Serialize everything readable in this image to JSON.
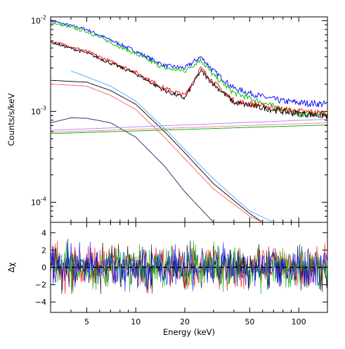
{
  "chart_data": [
    {
      "type": "line",
      "panel": "spectrum",
      "ylabel": "Counts/s/keV",
      "xlabel": "",
      "xscale": "log",
      "yscale": "log",
      "xlim": [
        3,
        150
      ],
      "ylim": [
        6e-05,
        0.011
      ],
      "ytick_labels": [
        {
          "value": 0.01,
          "base": "10",
          "exp": "-2"
        },
        {
          "value": 0.001,
          "base": "10",
          "exp": "-3"
        },
        {
          "value": 0.0001,
          "base": "10",
          "exp": "-4"
        }
      ],
      "grid": false,
      "legend": "none",
      "series": [
        {
          "color": "#0000ff",
          "kind": "data",
          "x": [
            3,
            5,
            10,
            15,
            20,
            25,
            30,
            40,
            60,
            80,
            100,
            150
          ],
          "y": [
            0.01,
            0.008,
            0.0046,
            0.0032,
            0.003,
            0.004,
            0.0028,
            0.0018,
            0.00145,
            0.0013,
            0.00125,
            0.0012
          ]
        },
        {
          "color": "#00bb00",
          "kind": "data",
          "x": [
            3,
            5,
            10,
            15,
            20,
            25,
            30,
            40,
            60,
            80,
            100,
            150
          ],
          "y": [
            0.0096,
            0.0076,
            0.0043,
            0.003,
            0.0028,
            0.0037,
            0.0025,
            0.0016,
            0.00125,
            0.00105,
            0.00095,
            0.0009
          ]
        },
        {
          "color": "#ff0000",
          "kind": "data",
          "x": [
            3,
            5,
            10,
            15,
            20,
            25,
            30,
            40,
            60,
            80,
            100,
            150
          ],
          "y": [
            0.006,
            0.0046,
            0.0027,
            0.0018,
            0.0015,
            0.003,
            0.0021,
            0.0013,
            0.00115,
            0.00105,
            0.001,
            0.00095
          ]
        },
        {
          "color": "#000000",
          "kind": "data",
          "x": [
            3,
            5,
            10,
            15,
            20,
            25,
            30,
            40,
            60,
            80,
            100,
            150
          ],
          "y": [
            0.0058,
            0.0044,
            0.0026,
            0.0017,
            0.0014,
            0.0028,
            0.002,
            0.00125,
            0.0011,
            0.001,
            0.00095,
            0.0009
          ]
        },
        {
          "color": "#4fa8ff",
          "kind": "component",
          "x": [
            4,
            5,
            7,
            10,
            15,
            20,
            30,
            50,
            70
          ],
          "y": [
            0.0028,
            0.0024,
            0.0019,
            0.0013,
            0.00065,
            0.00038,
            0.00018,
            8e-05,
            6e-05
          ]
        },
        {
          "color": "#000000",
          "kind": "component",
          "x": [
            3,
            5,
            7,
            10,
            15,
            20,
            30,
            50,
            60
          ],
          "y": [
            0.0022,
            0.0021,
            0.0017,
            0.0012,
            0.0006,
            0.00035,
            0.00016,
            7.5e-05,
            6e-05
          ]
        },
        {
          "color": "#ff6060",
          "kind": "component",
          "x": [
            3,
            5,
            7,
            10,
            15,
            20,
            30,
            50,
            60
          ],
          "y": [
            0.002,
            0.0019,
            0.0015,
            0.00105,
            0.00052,
            0.0003,
            0.00014,
            7e-05,
            6e-05
          ]
        },
        {
          "color": "#222266",
          "kind": "component",
          "x": [
            3,
            4,
            5,
            7,
            10,
            15,
            20,
            25,
            30
          ],
          "y": [
            0.00075,
            0.00085,
            0.00084,
            0.00075,
            0.00052,
            0.00025,
            0.00013,
            8.5e-05,
            6e-05
          ]
        },
        {
          "color": "#b080ff",
          "kind": "component",
          "x": [
            3,
            150
          ],
          "y": [
            0.00062,
            0.00082
          ]
        },
        {
          "color": "#ff8080",
          "kind": "component",
          "x": [
            3,
            150
          ],
          "y": [
            0.00059,
            0.00075
          ]
        },
        {
          "color": "#00aa00",
          "kind": "component",
          "x": [
            3,
            150
          ],
          "y": [
            0.00057,
            0.00071
          ]
        }
      ]
    },
    {
      "type": "line",
      "panel": "residuals",
      "xlabel": "Energy (keV)",
      "ylabel": "Δχ",
      "xscale": "log",
      "xlim": [
        3,
        150
      ],
      "ylim": [
        -5.2,
        5.2
      ],
      "xticks": [
        5,
        10,
        20,
        50,
        100
      ],
      "xtick_labels": [
        "5",
        "10",
        "20",
        "50",
        "100"
      ],
      "yticks": [
        -4,
        -2,
        0,
        2,
        4
      ],
      "ytick_labels": [
        "−4",
        "−2",
        "0",
        "2",
        "4"
      ],
      "reference_line": {
        "y": 0,
        "style": "dashed",
        "color": "#000000"
      },
      "series_colors": [
        "#ff0000",
        "#000000",
        "#00bb00",
        "#0000ff"
      ],
      "noise_amplitude": 1.2
    }
  ],
  "colors": {
    "blue": "#0000ff",
    "green": "#00bb00",
    "red": "#ff0000",
    "black": "#000000"
  }
}
